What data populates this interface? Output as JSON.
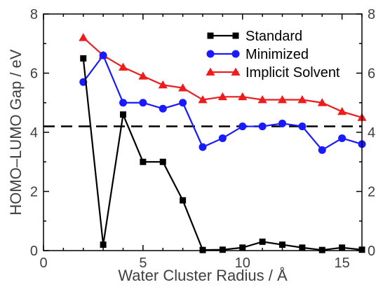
{
  "chart_data": {
    "type": "line",
    "xlabel": "Water Cluster Radius / Å",
    "ylabel": "HOMO–LUMO Gap / eV",
    "xlim": [
      0,
      16
    ],
    "ylim": [
      0,
      8
    ],
    "x_ticks": [
      "0",
      "5",
      "10",
      "15"
    ],
    "y_ticks": [
      "0",
      "2",
      "4",
      "6",
      "8"
    ],
    "right_y_ticks": [
      "0",
      "2",
      "4",
      "6",
      "8"
    ],
    "grid": false,
    "legend_position": "top-right",
    "reference_line": {
      "y": 4.2,
      "style": "dashed"
    },
    "series": [
      {
        "name": "Standard",
        "color": "#000000",
        "marker": "square",
        "x": [
          2,
          3,
          4,
          5,
          6,
          7,
          8,
          9,
          10,
          11,
          12,
          13,
          14,
          15,
          16
        ],
        "values": [
          6.5,
          0.2,
          4.6,
          3.0,
          3.0,
          1.7,
          0.02,
          0.03,
          0.1,
          0.3,
          0.2,
          0.1,
          0.02,
          0.1,
          0.03
        ]
      },
      {
        "name": "Minimized",
        "color": "#1a1aff",
        "marker": "circle",
        "x": [
          2,
          3,
          4,
          5,
          6,
          7,
          8,
          9,
          10,
          11,
          12,
          13,
          14,
          15,
          16
        ],
        "values": [
          5.7,
          6.6,
          5.0,
          5.0,
          4.8,
          5.0,
          3.5,
          3.8,
          4.2,
          4.2,
          4.3,
          4.2,
          3.4,
          3.8,
          3.6
        ]
      },
      {
        "name": "Implicit Solvent",
        "color": "#ee1c1c",
        "marker": "triangle",
        "x": [
          2,
          3,
          4,
          5,
          6,
          7,
          8,
          9,
          10,
          11,
          12,
          13,
          14,
          15,
          16
        ],
        "values": [
          7.2,
          6.6,
          6.2,
          5.9,
          5.6,
          5.5,
          5.1,
          5.2,
          5.2,
          5.1,
          5.1,
          5.1,
          5.0,
          4.7,
          4.5
        ]
      }
    ]
  }
}
